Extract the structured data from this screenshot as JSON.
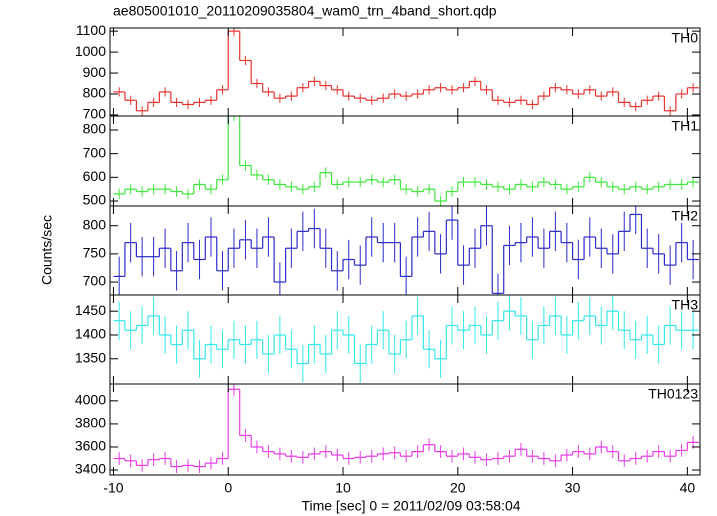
{
  "chart_data": [
    {
      "type": "histogram",
      "title": "ae805001010_20110209035804_wam0_trn_4band_short.qdp",
      "label": "TH0",
      "color": "#e8322e",
      "bins": [
        -10,
        -9,
        -8,
        -7,
        -6,
        -5,
        -4,
        -3,
        -2,
        -1,
        0,
        1,
        2,
        3,
        4,
        5,
        6,
        7,
        8,
        9,
        10,
        11,
        12,
        13,
        14,
        15,
        16,
        17,
        18,
        19,
        20,
        21,
        22,
        23,
        24,
        25,
        26,
        27,
        28,
        29,
        30,
        31,
        32,
        33,
        34,
        35,
        36,
        37,
        38,
        39,
        40,
        41
      ],
      "values": [
        810,
        770,
        720,
        760,
        810,
        760,
        750,
        760,
        770,
        820,
        1100,
        960,
        850,
        810,
        780,
        790,
        830,
        860,
        840,
        820,
        790,
        780,
        770,
        780,
        800,
        790,
        800,
        820,
        830,
        820,
        830,
        860,
        820,
        770,
        760,
        770,
        750,
        790,
        830,
        820,
        800,
        820,
        790,
        810,
        760,
        740,
        770,
        790,
        720,
        800,
        830
      ],
      "error": 22,
      "xlim": [
        -10.3,
        41.1
      ],
      "xticks": [
        -10,
        0,
        10,
        20,
        30,
        40
      ],
      "ylim": [
        695,
        1115
      ],
      "yticks": [
        700,
        800,
        900,
        1000,
        1100
      ]
    },
    {
      "type": "histogram",
      "label": "TH1",
      "color": "#3de83a",
      "bins": [
        -10,
        -9,
        -8,
        -7,
        -6,
        -5,
        -4,
        -3,
        -2,
        -1,
        0,
        1,
        2,
        3,
        4,
        5,
        6,
        7,
        8,
        9,
        10,
        11,
        12,
        13,
        14,
        15,
        16,
        17,
        18,
        19,
        20,
        21,
        22,
        23,
        24,
        25,
        26,
        27,
        28,
        29,
        30,
        31,
        32,
        33,
        34,
        35,
        36,
        37,
        38,
        39,
        40,
        41
      ],
      "values": [
        530,
        550,
        540,
        550,
        550,
        540,
        530,
        570,
        550,
        590,
        860,
        650,
        610,
        590,
        570,
        560,
        550,
        560,
        620,
        570,
        580,
        580,
        590,
        580,
        590,
        550,
        540,
        550,
        500,
        540,
        580,
        580,
        570,
        560,
        550,
        570,
        560,
        580,
        570,
        550,
        560,
        600,
        580,
        560,
        550,
        560,
        550,
        560,
        570,
        570,
        580
      ],
      "error": 22,
      "xlim": [
        -10.3,
        41.1
      ],
      "xticks": [
        -10,
        0,
        10,
        20,
        30,
        40
      ],
      "ylim": [
        479,
        859
      ],
      "yticks": [
        500,
        600,
        700,
        800
      ]
    },
    {
      "type": "histogram",
      "label": "TH2",
      "ylabel": "Counts/sec",
      "color": "#2b2bc8",
      "bins": [
        -10,
        -9,
        -8,
        -7,
        -6,
        -5,
        -4,
        -3,
        -2,
        -1,
        0,
        1,
        2,
        3,
        4,
        5,
        6,
        7,
        8,
        9,
        10,
        11,
        12,
        13,
        14,
        15,
        16,
        17,
        18,
        19,
        20,
        21,
        22,
        23,
        24,
        25,
        26,
        27,
        28,
        29,
        30,
        31,
        32,
        33,
        34,
        35,
        36,
        37,
        38,
        39,
        40,
        41
      ],
      "values": [
        710,
        770,
        745,
        745,
        760,
        720,
        770,
        740,
        780,
        720,
        760,
        775,
        760,
        780,
        700,
        760,
        790,
        795,
        760,
        720,
        740,
        730,
        780,
        770,
        770,
        710,
        780,
        790,
        750,
        810,
        730,
        760,
        800,
        680,
        765,
        770,
        780,
        760,
        790,
        770,
        740,
        780,
        760,
        750,
        790,
        820,
        760,
        750,
        730,
        770,
        740
      ],
      "error": 35,
      "xlim": [
        -10.3,
        41.1
      ],
      "xticks": [
        -10,
        0,
        10,
        20,
        30,
        40
      ],
      "ylim": [
        677,
        835
      ],
      "yticks": [
        700,
        750,
        800
      ]
    },
    {
      "type": "histogram",
      "label": "TH3",
      "color": "#35e8e8",
      "bins": [
        -10,
        -9,
        -8,
        -7,
        -6,
        -5,
        -4,
        -3,
        -2,
        -1,
        0,
        1,
        2,
        3,
        4,
        5,
        6,
        7,
        8,
        9,
        10,
        11,
        12,
        13,
        14,
        15,
        16,
        17,
        18,
        19,
        20,
        21,
        22,
        23,
        24,
        25,
        26,
        27,
        28,
        29,
        30,
        31,
        32,
        33,
        34,
        35,
        36,
        37,
        38,
        39,
        40,
        41
      ],
      "values": [
        1430,
        1410,
        1420,
        1440,
        1400,
        1380,
        1410,
        1350,
        1380,
        1370,
        1390,
        1380,
        1390,
        1360,
        1400,
        1370,
        1340,
        1380,
        1360,
        1410,
        1400,
        1340,
        1380,
        1410,
        1360,
        1390,
        1440,
        1370,
        1350,
        1420,
        1410,
        1420,
        1400,
        1430,
        1450,
        1440,
        1390,
        1420,
        1440,
        1400,
        1430,
        1440,
        1420,
        1450,
        1410,
        1390,
        1400,
        1380,
        1420,
        1410,
        1410
      ],
      "error": 40,
      "xlim": [
        -10.3,
        41.1
      ],
      "xticks": [
        -10,
        0,
        10,
        20,
        30,
        40
      ],
      "ylim": [
        1297,
        1484
      ],
      "yticks": [
        1350,
        1400,
        1450
      ]
    },
    {
      "type": "histogram",
      "label": "TH0123",
      "xlabel": "Time [sec] 0 = 2011/02/09 03:58:04",
      "color": "#e83ae8",
      "bins": [
        -10,
        -9,
        -8,
        -7,
        -6,
        -5,
        -4,
        -3,
        -2,
        -1,
        0,
        1,
        2,
        3,
        4,
        5,
        6,
        7,
        8,
        9,
        10,
        11,
        12,
        13,
        14,
        15,
        16,
        17,
        18,
        19,
        20,
        21,
        22,
        23,
        24,
        25,
        26,
        27,
        28,
        29,
        30,
        31,
        32,
        33,
        34,
        35,
        36,
        37,
        38,
        39,
        40,
        41
      ],
      "values": [
        3500,
        3480,
        3440,
        3490,
        3500,
        3430,
        3440,
        3430,
        3460,
        3500,
        4100,
        3700,
        3600,
        3560,
        3540,
        3520,
        3510,
        3540,
        3560,
        3530,
        3500,
        3510,
        3520,
        3540,
        3550,
        3520,
        3560,
        3620,
        3560,
        3520,
        3540,
        3510,
        3490,
        3500,
        3520,
        3580,
        3520,
        3500,
        3480,
        3530,
        3560,
        3540,
        3600,
        3560,
        3480,
        3500,
        3520,
        3560,
        3520,
        3570,
        3640
      ],
      "error": 55,
      "xlim": [
        -10.3,
        41.1
      ],
      "xticks": [
        -10,
        0,
        10,
        20,
        30,
        40
      ],
      "ylim": [
        3357,
        4146
      ],
      "yticks": [
        3400,
        3600,
        3800,
        4000
      ]
    }
  ]
}
